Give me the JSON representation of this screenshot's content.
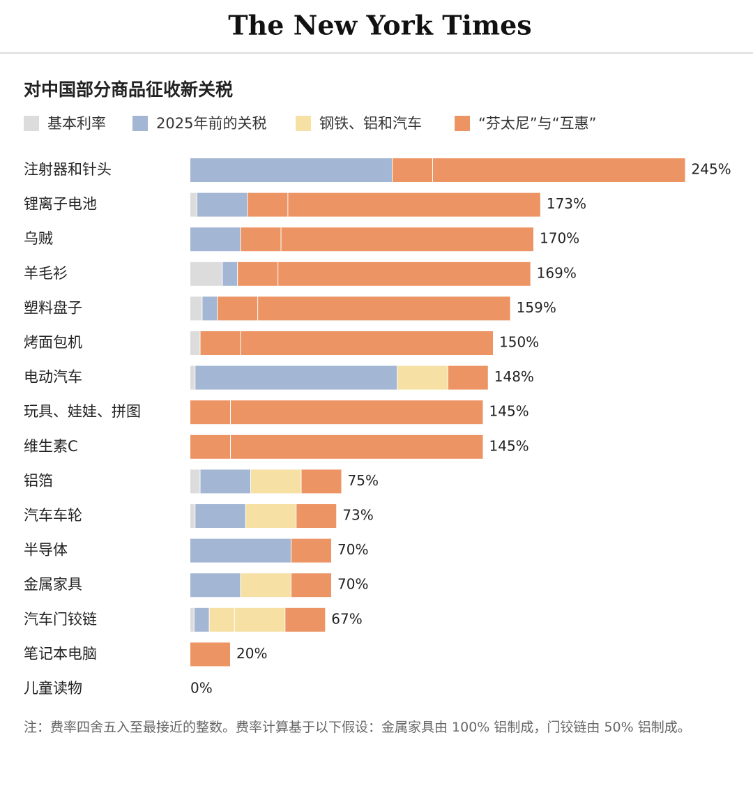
{
  "header": {
    "logo": "The New York Times"
  },
  "chart_data": {
    "type": "stacked-bar-horizontal",
    "title": "对中国部分商品征收新关税",
    "categories": [
      "注射器和针头",
      "锂离子电池",
      "乌贼",
      "羊毛衫",
      "塑料盘子",
      "烤面包机",
      "电动汽车",
      "玩具、娃娃、拼图",
      "维生素C",
      "铝箔",
      "汽车车轮",
      "半导体",
      "金属家具",
      "汽车门铰链",
      "笔记本电脑",
      "儿童读物"
    ],
    "series": [
      {
        "name": "基本利率",
        "color": "#dcdcdc",
        "values": [
          0,
          3.4,
          0,
          16,
          6,
          5,
          2.5,
          0,
          0,
          5,
          2.5,
          0,
          0,
          2,
          0,
          0
        ]
      },
      {
        "name": "2025年前的关税",
        "color": "#a3b6d3",
        "values": [
          100,
          25,
          25,
          7.5,
          7.5,
          0,
          100,
          0,
          0,
          25,
          25,
          50,
          25,
          7.5,
          0,
          0
        ]
      },
      {
        "name": "钢铁、铝和汽车",
        "color": "#f6e0a4",
        "values": [
          0,
          0,
          0,
          0,
          0,
          0,
          25,
          0,
          0,
          25,
          25,
          0,
          25,
          [
            12.5,
            25
          ],
          0,
          0
        ]
      },
      {
        "name": "“芬太尼”与“互惠”",
        "color": "#ec9463",
        "values": [
          [
            20,
            125
          ],
          [
            20,
            125
          ],
          [
            20,
            125
          ],
          [
            20,
            125
          ],
          [
            20,
            125
          ],
          [
            20,
            125
          ],
          20,
          [
            20,
            125
          ],
          [
            20,
            125
          ],
          20,
          20,
          20,
          20,
          20,
          20,
          0
        ]
      }
    ],
    "totals": [
      245,
      173,
      170,
      169,
      159,
      150,
      148,
      145,
      145,
      75,
      73,
      70,
      70,
      67,
      20,
      0
    ],
    "value_labels": [
      "245%",
      "173%",
      "170%",
      "169%",
      "159%",
      "150%",
      "148%",
      "145%",
      "145%",
      "75%",
      "73%",
      "70%",
      "70%",
      "67%",
      "20%",
      "0%"
    ],
    "note": "注：费率四舍五入至最接近的整数。费率计算基于以下假设：金属家具由 100% 铝制成，门铰链由 50% 铝制成。"
  }
}
